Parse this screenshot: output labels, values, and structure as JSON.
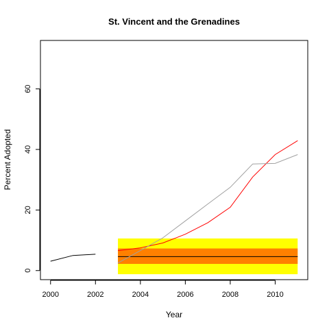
{
  "chart_data": {
    "type": "line",
    "title": "St. Vincent and the Grenadines",
    "xlabel": "Year",
    "ylabel": "Percent Adopted",
    "xlim": [
      1999.55,
      2011.45
    ],
    "ylim": [
      -3,
      76
    ],
    "x_ticks": [
      2000,
      2002,
      2004,
      2006,
      2008,
      2010
    ],
    "y_ticks": [
      0,
      20,
      40,
      60
    ],
    "grid": false,
    "legend": "none",
    "bands": [
      {
        "x": [
          2003,
          2011
        ],
        "y": [
          -1.2,
          10.6
        ],
        "color": "#ffff00"
      },
      {
        "x": [
          2003,
          2011
        ],
        "y": [
          2.2,
          7.3
        ],
        "color": "#ff8000"
      }
    ],
    "series": [
      {
        "color": "#000000",
        "x": [
          2000,
          2001,
          2002
        ],
        "y": [
          3.1,
          5.0,
          5.4
        ]
      },
      {
        "color": "#000000",
        "x": [
          2003,
          2011
        ],
        "y": [
          4.6,
          4.6
        ]
      },
      {
        "color": "#ff0000",
        "x": [
          2003,
          2004,
          2005,
          2006,
          2007,
          2008,
          2009,
          2010,
          2011
        ],
        "y": [
          6.6,
          7.5,
          9.1,
          12.0,
          15.8,
          20.9,
          30.9,
          38.3,
          42.9
        ]
      },
      {
        "color": "#a0a0a0",
        "x": [
          2003,
          2004,
          2005,
          2006,
          2007,
          2008,
          2009,
          2010,
          2011
        ],
        "y": [
          2.5,
          6.6,
          10.8,
          16.4,
          22.0,
          27.5,
          35.2,
          35.4,
          38.3
        ]
      }
    ]
  }
}
